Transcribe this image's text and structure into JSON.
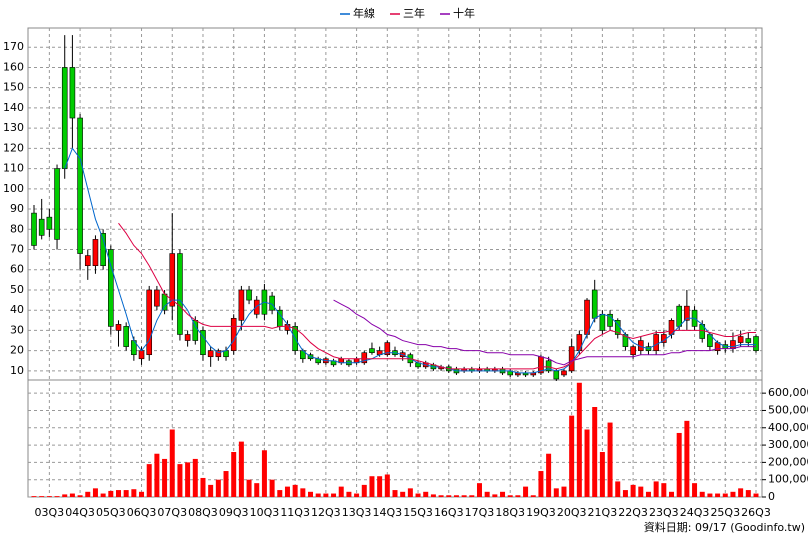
{
  "chart_data": [
    {
      "type": "candlestick",
      "categories": [
        null,
        null,
        "03Q3",
        null,
        null,
        null,
        "04Q3",
        null,
        null,
        null,
        "05Q3",
        null,
        null,
        null,
        "06Q3",
        null,
        null,
        null,
        "07Q3",
        null,
        null,
        null,
        "08Q3",
        null,
        null,
        null,
        "09Q3",
        null,
        null,
        null,
        "10Q3",
        null,
        null,
        null,
        "11Q3",
        null,
        null,
        null,
        "12Q3",
        null,
        null,
        null,
        "13Q3",
        null,
        null,
        null,
        "14Q3",
        null,
        null,
        null,
        "15Q3",
        null,
        null,
        null,
        "16Q3",
        null,
        null,
        null,
        "17Q3",
        null,
        null,
        null,
        "18Q3",
        null,
        null,
        null,
        "19Q3",
        null,
        null,
        null,
        "20Q3",
        null,
        null,
        null,
        "21Q3",
        null,
        null,
        null,
        "22Q3",
        null,
        null,
        null,
        "23Q3",
        null,
        null,
        null,
        "24Q3",
        null,
        null,
        null,
        "25Q3",
        null,
        null,
        null,
        "26Q3"
      ],
      "open": [
        88,
        85,
        86,
        110,
        160,
        160,
        135,
        62,
        62,
        78,
        70,
        30,
        32,
        25,
        16,
        18,
        42,
        48,
        42,
        68,
        25,
        35,
        30,
        17,
        17,
        20,
        20,
        35,
        50,
        38,
        50,
        47,
        40,
        30,
        32,
        20,
        18,
        16,
        14,
        15,
        14,
        15,
        14,
        14,
        21,
        18,
        18,
        20,
        17,
        18,
        14,
        12,
        13,
        11,
        12,
        11,
        10,
        11,
        10,
        11,
        10,
        11,
        10,
        8,
        9,
        8,
        9,
        15,
        10,
        8,
        10,
        20,
        28,
        50,
        38,
        38,
        35,
        28,
        18,
        20,
        22,
        20,
        24,
        28,
        42,
        35,
        40,
        33,
        28,
        20,
        23,
        21,
        24,
        26,
        27
      ],
      "high": [
        92,
        95,
        90,
        112,
        176,
        176,
        137,
        70,
        77,
        80,
        72,
        35,
        34,
        27,
        22,
        52,
        52,
        50,
        88,
        70,
        30,
        37,
        32,
        22,
        21,
        22,
        38,
        52,
        52,
        47,
        53,
        49,
        42,
        35,
        34,
        21,
        19,
        17,
        17,
        16,
        17,
        16,
        17,
        20,
        24,
        22,
        25,
        22,
        20,
        19,
        15,
        15,
        14,
        13,
        13,
        12,
        12,
        12,
        12,
        12,
        12,
        12,
        11,
        10,
        10,
        10,
        18,
        17,
        11,
        11,
        26,
        30,
        46,
        55,
        40,
        40,
        36,
        29,
        23,
        27,
        24,
        30,
        30,
        36,
        43,
        50,
        42,
        35,
        29,
        25,
        25,
        29,
        30,
        29,
        28
      ],
      "low": [
        70,
        75,
        76,
        70,
        105,
        120,
        60,
        55,
        58,
        60,
        28,
        22,
        20,
        15,
        13,
        15,
        40,
        38,
        35,
        25,
        22,
        23,
        15,
        12,
        15,
        15,
        18,
        30,
        43,
        36,
        35,
        38,
        30,
        28,
        18,
        14,
        15,
        13,
        13,
        12,
        13,
        12,
        13,
        13,
        18,
        17,
        17,
        17,
        15,
        12,
        11,
        11,
        10,
        10,
        9,
        8,
        9,
        9,
        9,
        9,
        9,
        8,
        7,
        7,
        7,
        7,
        8,
        9,
        5,
        7,
        9,
        18,
        26,
        34,
        28,
        30,
        26,
        20,
        16,
        18,
        18,
        18,
        22,
        26,
        30,
        30,
        30,
        24,
        20,
        18,
        19,
        19,
        22,
        22,
        19
      ],
      "close": [
        72,
        77,
        80,
        75,
        110,
        135,
        68,
        67,
        75,
        62,
        32,
        33,
        22,
        18,
        20,
        50,
        50,
        40,
        68,
        28,
        28,
        25,
        18,
        20,
        20,
        17,
        36,
        50,
        45,
        45,
        38,
        40,
        32,
        33,
        20,
        16,
        16,
        14,
        16,
        13,
        16,
        13,
        16,
        19,
        19,
        20,
        24,
        18,
        19,
        14,
        12,
        14,
        11,
        12,
        10,
        9,
        11,
        10,
        11,
        10,
        11,
        9,
        8,
        9,
        8,
        9,
        17,
        10,
        6,
        10,
        22,
        28,
        45,
        36,
        30,
        32,
        28,
        22,
        22,
        25,
        20,
        28,
        28,
        35,
        32,
        42,
        32,
        26,
        22,
        24,
        21,
        25,
        27,
        24,
        20
      ],
      "up_color": "#ff0000",
      "down_color": "#00cc00",
      "ylim": [
        5.5,
        179.5
      ],
      "yticks": [
        10,
        20,
        30,
        40,
        50,
        60,
        70,
        80,
        90,
        100,
        110,
        120,
        130,
        140,
        150,
        160,
        170
      ],
      "grid": true,
      "legend": "top",
      "series": [
        {
          "name": "年線",
          "color": "#0066cc",
          "values": [
            null,
            null,
            null,
            null,
            110,
            120,
            115,
            100,
            85,
            75,
            62,
            50,
            38,
            25,
            20,
            25,
            35,
            42,
            45,
            45,
            40,
            32,
            27,
            22,
            19,
            20,
            25,
            32,
            38,
            42,
            44,
            43,
            38,
            33,
            26,
            20,
            17,
            16,
            15,
            15,
            14,
            14,
            14,
            15,
            16,
            18,
            19,
            19,
            18,
            16,
            14,
            13,
            12,
            12,
            11,
            10,
            10,
            10,
            10,
            10,
            10,
            10,
            10,
            9,
            9,
            9,
            10,
            11,
            10,
            11,
            14,
            20,
            28,
            36,
            38,
            37,
            33,
            28,
            24,
            22,
            21,
            23,
            25,
            28,
            32,
            36,
            36,
            33,
            28,
            24,
            22,
            22,
            23,
            23,
            23
          ]
        },
        {
          "name": "三年",
          "color": "#dd0044",
          "values": [
            null,
            null,
            null,
            null,
            null,
            null,
            null,
            null,
            null,
            null,
            null,
            83,
            78,
            72,
            68,
            62,
            55,
            48,
            45,
            42,
            38,
            35,
            33,
            32,
            32,
            32,
            32,
            32,
            32,
            32,
            32,
            31,
            32,
            32,
            31,
            28,
            24,
            21,
            19,
            17,
            16,
            16,
            16,
            16,
            16,
            16,
            16,
            16,
            16,
            16,
            15,
            14,
            13,
            12,
            11,
            11,
            11,
            11,
            11,
            11,
            11,
            11,
            11,
            11,
            11,
            11,
            12,
            12,
            11,
            12,
            14,
            18,
            22,
            26,
            28,
            30,
            29,
            27,
            26,
            27,
            28,
            29,
            29,
            30,
            30,
            30,
            30,
            30,
            29,
            28,
            27,
            27,
            28,
            29,
            29
          ]
        },
        {
          "name": "十年",
          "color": "#8800aa",
          "values": [
            null,
            null,
            null,
            null,
            null,
            null,
            null,
            null,
            null,
            null,
            null,
            null,
            null,
            null,
            null,
            null,
            null,
            null,
            null,
            null,
            null,
            null,
            null,
            null,
            null,
            null,
            null,
            null,
            null,
            null,
            null,
            null,
            null,
            null,
            null,
            null,
            null,
            null,
            null,
            45,
            43,
            41,
            38,
            36,
            33,
            31,
            28,
            27,
            25,
            24,
            23,
            23,
            22,
            22,
            21,
            21,
            20,
            20,
            20,
            19,
            19,
            19,
            18,
            18,
            18,
            18,
            17,
            16,
            14,
            13,
            15,
            16,
            17,
            17,
            17,
            17,
            17,
            17,
            17,
            18,
            18,
            18,
            18,
            19,
            19,
            20,
            20,
            20,
            20,
            21,
            21,
            21,
            22,
            22,
            22
          ]
        }
      ]
    },
    {
      "type": "bar",
      "color": "#ff0000",
      "values": [
        5000,
        5000,
        5000,
        5000,
        15000,
        20000,
        10000,
        30000,
        50000,
        20000,
        35000,
        40000,
        40000,
        45000,
        30000,
        190000,
        250000,
        220000,
        390000,
        190000,
        200000,
        220000,
        110000,
        70000,
        100000,
        150000,
        260000,
        320000,
        100000,
        80000,
        270000,
        100000,
        40000,
        60000,
        70000,
        50000,
        30000,
        20000,
        20000,
        20000,
        60000,
        30000,
        20000,
        70000,
        120000,
        120000,
        130000,
        40000,
        30000,
        50000,
        20000,
        30000,
        15000,
        10000,
        10000,
        10000,
        10000,
        10000,
        80000,
        30000,
        15000,
        30000,
        10000,
        10000,
        60000,
        10000,
        150000,
        250000,
        50000,
        60000,
        470000,
        660000,
        390000,
        520000,
        260000,
        430000,
        90000,
        40000,
        70000,
        60000,
        30000,
        90000,
        80000,
        30000,
        370000,
        440000,
        80000,
        30000,
        20000,
        20000,
        20000,
        30000,
        50000,
        40000,
        20000
      ],
      "ylim": [
        0,
        676000
      ],
      "yticks": [
        0,
        {
          "value": 100000,
          "label": "100,000"
        },
        {
          "value": 200000,
          "label": "200,000"
        },
        {
          "value": 300000,
          "label": "300,000"
        },
        {
          "value": 400000,
          "label": "400,000"
        },
        {
          "value": 500000,
          "label": "500,000"
        },
        {
          "value": 600000,
          "label": "600,000"
        }
      ],
      "grid": true,
      "note": "資料日期: 09/17 (Goodinfo.tw)"
    }
  ]
}
